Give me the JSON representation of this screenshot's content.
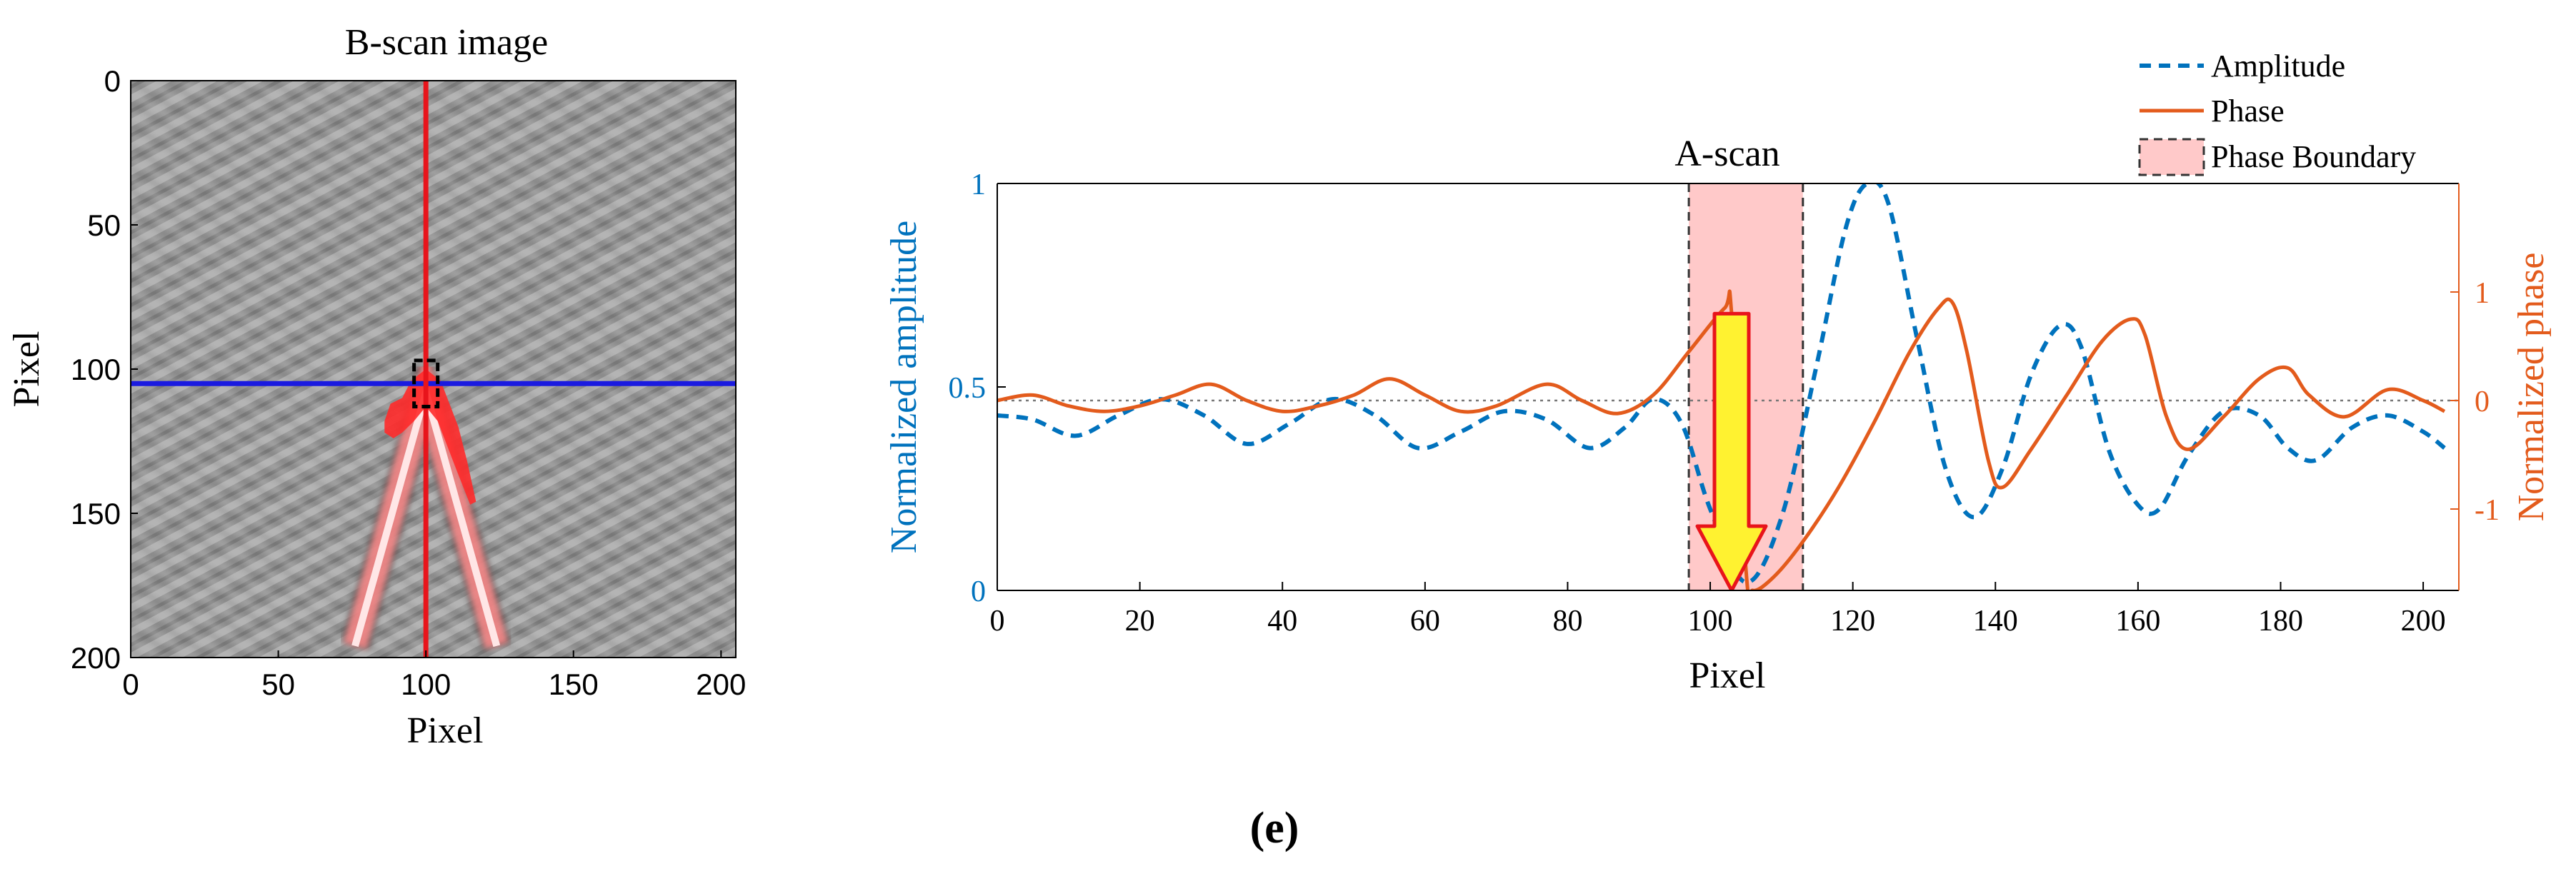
{
  "panel_label": "(e)",
  "colors": {
    "amplitude": "#0072BD",
    "phase": "#E35B1C",
    "boundary_fill": "#FFC9C9",
    "vertical_line": "#E8141B",
    "horizontal_line": "#1A1AE0",
    "arrow_fill": "#FFF230",
    "arrow_stroke": "#E8141B"
  },
  "chart_data": [
    {
      "type": "heatmap",
      "title": "B-scan image",
      "xlabel": "Pixel",
      "ylabel": "Pixel",
      "xlim": [
        0,
        205
      ],
      "ylim": [
        0,
        200
      ],
      "y_reversed": true,
      "xticks": [
        0,
        50,
        100,
        150,
        200
      ],
      "yticks": [
        0,
        50,
        100,
        150,
        200
      ],
      "vertical_line_x": 100,
      "horizontal_line_y": 105,
      "boundary_box": {
        "x": [
          96,
          104
        ],
        "y": [
          97,
          113
        ]
      },
      "hyperbola_apex": {
        "x": 100,
        "y": 108
      },
      "hyperbola_base_y": 196,
      "hyperbola_half_width": 24
    },
    {
      "type": "line",
      "title": "A-scan",
      "xlabel": "Pixel",
      "ylabel": "Normalized amplitude",
      "y2label": "Normalized phase",
      "xlim": [
        0,
        205
      ],
      "ylim": [
        0,
        1
      ],
      "y2lim": [
        -1.75,
        2
      ],
      "xticks": [
        0,
        20,
        40,
        60,
        80,
        100,
        120,
        140,
        160,
        180,
        200
      ],
      "yticks": [
        0,
        0.5,
        1
      ],
      "y2ticks": [
        -1,
        0,
        1
      ],
      "y2_zero_line": 0,
      "phase_boundary": [
        97,
        113
      ],
      "arrow": {
        "x": 103,
        "from_phase": 0.8,
        "to_phase": -1.75
      },
      "legend_position": "top-right",
      "legend": [
        "Amplitude",
        "Phase",
        "Phase Boundary"
      ],
      "series": [
        {
          "name": "Amplitude",
          "style": "dashed",
          "axis": "left",
          "x": [
            0,
            5,
            11,
            17,
            23,
            29,
            35,
            41,
            47,
            53,
            59,
            65,
            71,
            77,
            83,
            88,
            92,
            96,
            100,
            105,
            110,
            115,
            119,
            122,
            125,
            129,
            133,
            137,
            141,
            145,
            149,
            152,
            156,
            160,
            163,
            167,
            172,
            177,
            181,
            185,
            190,
            195,
            200,
            203
          ],
          "values": [
            0.43,
            0.42,
            0.38,
            0.43,
            0.47,
            0.43,
            0.36,
            0.41,
            0.47,
            0.43,
            0.35,
            0.39,
            0.44,
            0.42,
            0.35,
            0.4,
            0.47,
            0.41,
            0.2,
            0.02,
            0.18,
            0.56,
            0.89,
            1.0,
            0.95,
            0.62,
            0.3,
            0.18,
            0.3,
            0.53,
            0.65,
            0.6,
            0.34,
            0.21,
            0.2,
            0.33,
            0.44,
            0.43,
            0.35,
            0.32,
            0.4,
            0.43,
            0.39,
            0.35
          ]
        },
        {
          "name": "Phase",
          "style": "solid",
          "axis": "right",
          "x": [
            0,
            5,
            10,
            15,
            20,
            25,
            30,
            35,
            40,
            45,
            50,
            55,
            60,
            65,
            70,
            77,
            82,
            87,
            92,
            97,
            102,
            103,
            105,
            106,
            109,
            113,
            118,
            123,
            128,
            132,
            134,
            136,
            139,
            141,
            145,
            150,
            155,
            159,
            161,
            164,
            167,
            172,
            177,
            181,
            184,
            189,
            195,
            200,
            203
          ],
          "values": [
            0,
            0.05,
            -0.05,
            -0.1,
            -0.05,
            0.05,
            0.15,
            0.0,
            -0.1,
            -0.05,
            0.05,
            0.2,
            0.05,
            -0.1,
            -0.05,
            0.15,
            0.0,
            -0.12,
            0.05,
            0.45,
            0.85,
            0.8,
            -1.55,
            -1.75,
            -1.62,
            -1.3,
            -0.8,
            -0.2,
            0.45,
            0.85,
            0.9,
            0.45,
            -0.55,
            -0.8,
            -0.45,
            0.05,
            0.55,
            0.75,
            0.6,
            -0.15,
            -0.45,
            -0.15,
            0.2,
            0.3,
            0.05,
            -0.15,
            0.1,
            0.0,
            -0.1
          ]
        }
      ]
    }
  ]
}
